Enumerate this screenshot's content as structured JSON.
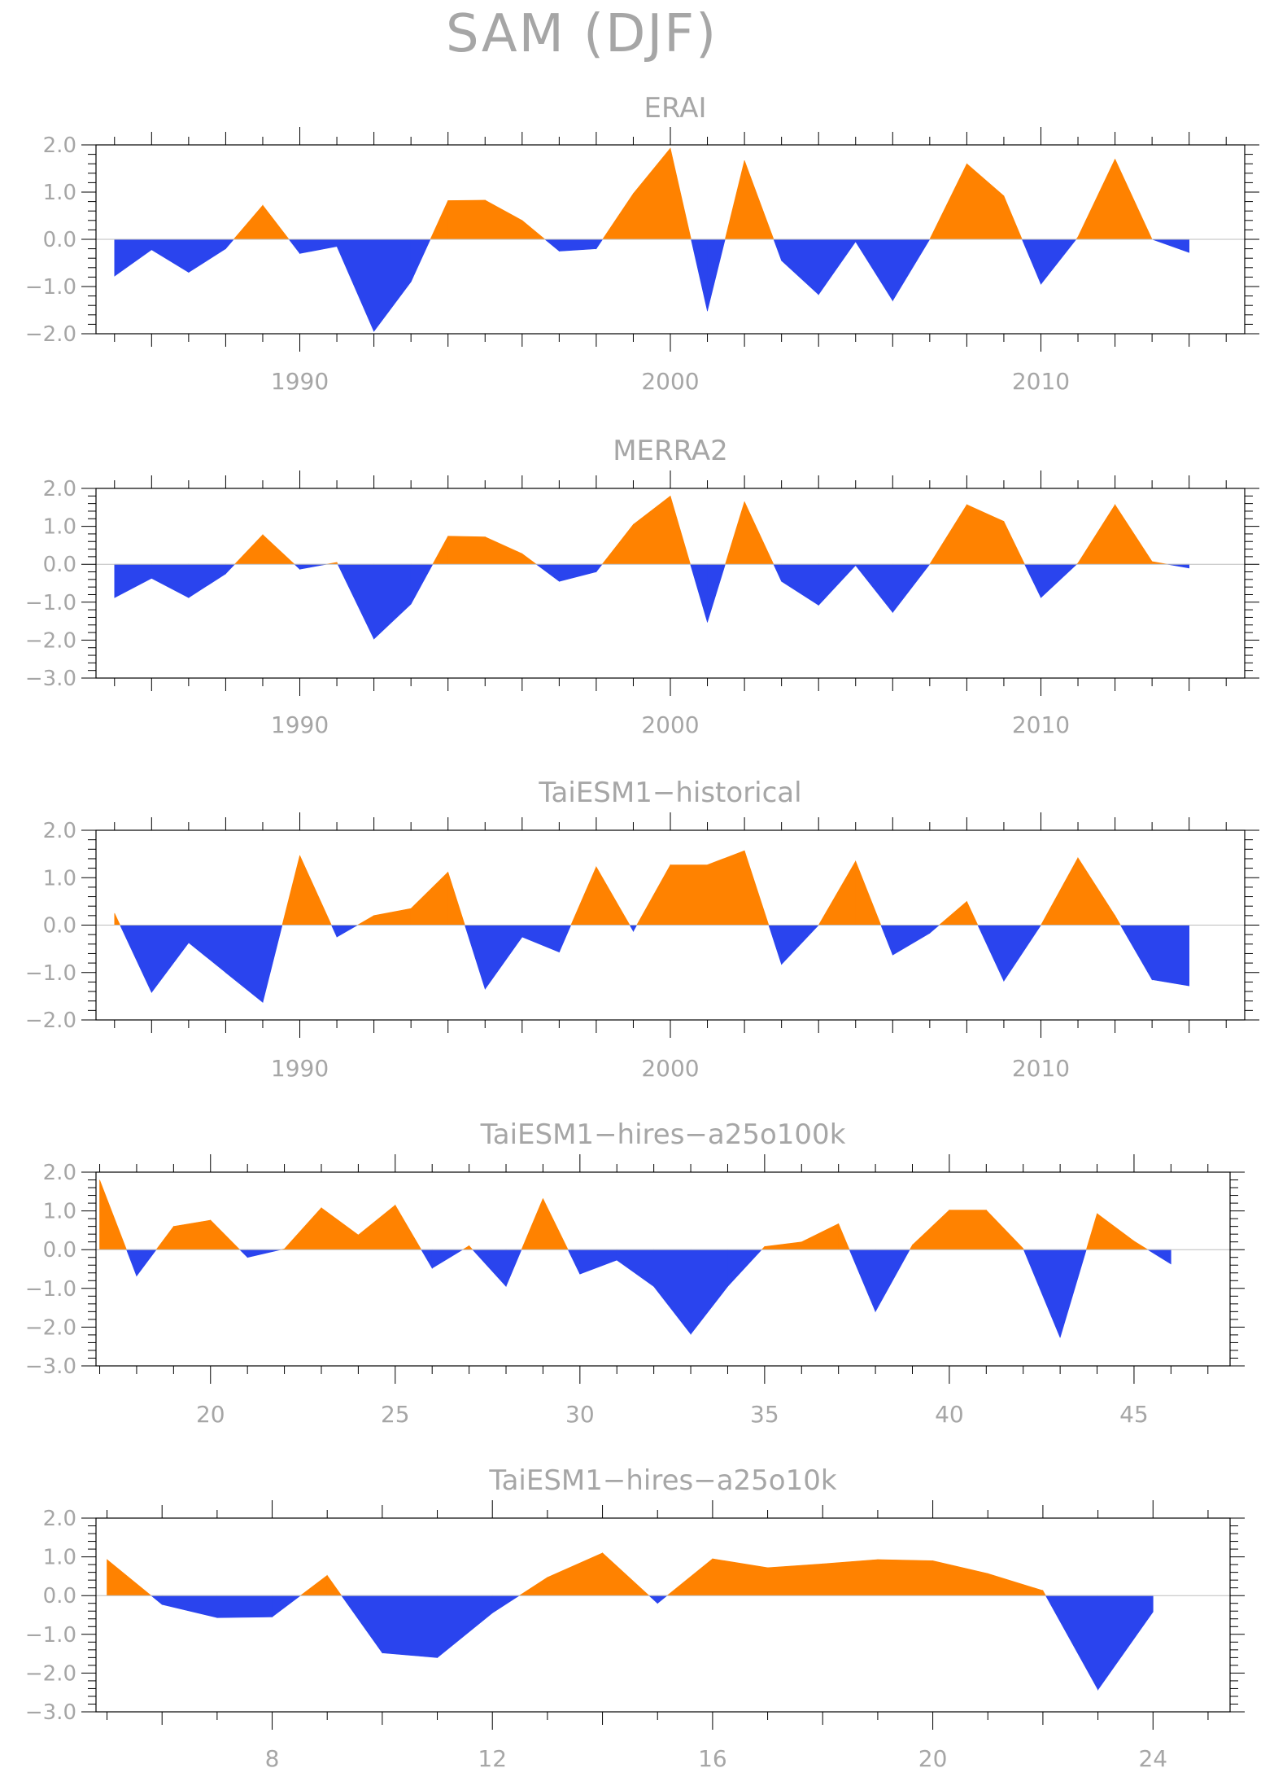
{
  "title": "SAM (DJF)",
  "colors": {
    "positive": "#ff8200",
    "negative": "#2a44ee",
    "axis": "#000000",
    "text": "#a6a6a6",
    "zero_line": "#bdbdbd"
  },
  "chart_data": [
    {
      "type": "area",
      "title": "ERAI",
      "xlabel": "",
      "ylabel": "",
      "xlim": [
        1984.5,
        2015.5
      ],
      "ylim": [
        -2.0,
        2.0
      ],
      "yticks": [
        2.0,
        1.0,
        0.0,
        -1.0,
        -2.0
      ],
      "ytick_labels": [
        "2.0",
        "1.0",
        "0.0",
        "-1.0",
        "-2.0"
      ],
      "xticks": [
        1990,
        2000,
        2010
      ],
      "xtick_labels": [
        "1990",
        "2000",
        "2010"
      ],
      "x": [
        1985,
        1986,
        1987,
        1988,
        1989,
        1990,
        1991,
        1992,
        1993,
        1994,
        1995,
        1996,
        1997,
        1998,
        1999,
        2000,
        2001,
        2002,
        2003,
        2004,
        2005,
        2006,
        2007,
        2008,
        2009,
        2010,
        2011,
        2012,
        2013,
        2014
      ],
      "values": [
        -0.78,
        -0.22,
        -0.7,
        -0.2,
        0.72,
        -0.3,
        -0.15,
        -1.95,
        -0.9,
        0.82,
        0.83,
        0.4,
        -0.25,
        -0.2,
        0.97,
        1.93,
        -1.52,
        1.67,
        -0.45,
        -1.17,
        -0.05,
        -1.3,
        0.0,
        1.6,
        0.92,
        -0.95,
        0.05,
        1.7,
        0.0,
        -0.28
      ]
    },
    {
      "type": "area",
      "title": "MERRA2",
      "xlabel": "",
      "ylabel": "",
      "xlim": [
        1984.5,
        2015.5
      ],
      "ylim": [
        -3.0,
        2.0
      ],
      "yticks": [
        2.0,
        1.0,
        0.0,
        -1.0,
        -2.0,
        -3.0
      ],
      "ytick_labels": [
        "2.0",
        "1.0",
        "0.0",
        "-1.0",
        "-2.0",
        "-3.0"
      ],
      "xticks": [
        1990,
        2000,
        2010
      ],
      "xtick_labels": [
        "1990",
        "2000",
        "2010"
      ],
      "x": [
        1985,
        1986,
        1987,
        1988,
        1989,
        1990,
        1991,
        1992,
        1993,
        1994,
        1995,
        1996,
        1997,
        1998,
        1999,
        2000,
        2001,
        2002,
        2003,
        2004,
        2005,
        2006,
        2007,
        2008,
        2009,
        2010,
        2011,
        2012,
        2013,
        2014
      ],
      "values": [
        -0.88,
        -0.37,
        -0.88,
        -0.25,
        0.78,
        -0.13,
        0.05,
        -1.97,
        -1.05,
        0.74,
        0.72,
        0.28,
        -0.45,
        -0.2,
        1.05,
        1.8,
        -1.53,
        1.65,
        -0.45,
        -1.08,
        -0.03,
        -1.27,
        0.0,
        1.57,
        1.13,
        -0.88,
        0.03,
        1.57,
        0.07,
        -0.1
      ]
    },
    {
      "type": "area",
      "title": "TaiESM1-historical",
      "xlabel": "",
      "ylabel": "",
      "xlim": [
        1984.5,
        2015.5
      ],
      "ylim": [
        -2.0,
        2.0
      ],
      "yticks": [
        2.0,
        1.0,
        0.0,
        -1.0,
        -2.0
      ],
      "ytick_labels": [
        "2.0",
        "1.0",
        "0.0",
        "-1.0",
        "-2.0"
      ],
      "xticks": [
        1990,
        2000,
        2010
      ],
      "xtick_labels": [
        "1990",
        "2000",
        "2010"
      ],
      "x": [
        1985,
        1986,
        1987,
        1988,
        1989,
        1990,
        1991,
        1992,
        1993,
        1994,
        1995,
        1996,
        1997,
        1998,
        1999,
        2000,
        2001,
        2002,
        2003,
        2004,
        2005,
        2006,
        2007,
        2008,
        2009,
        2010,
        2011,
        2012,
        2013,
        2014
      ],
      "values": [
        0.25,
        -1.42,
        -0.37,
        -1.0,
        -1.63,
        1.47,
        -0.25,
        0.2,
        0.35,
        1.12,
        -1.35,
        -0.25,
        -0.57,
        1.23,
        -0.13,
        1.27,
        1.27,
        1.57,
        -0.83,
        0.0,
        1.35,
        -0.63,
        -0.17,
        0.5,
        -1.18,
        0.0,
        1.42,
        0.2,
        -1.15,
        -1.28
      ]
    },
    {
      "type": "area",
      "title": "TaiESM1-hires-a25o100k",
      "xlabel": "",
      "ylabel": "",
      "xlim": [
        16.9,
        47.6
      ],
      "ylim": [
        -3.0,
        2.0
      ],
      "yticks": [
        2.0,
        1.0,
        0.0,
        -1.0,
        -2.0,
        -3.0
      ],
      "ytick_labels": [
        "2.0",
        "1.0",
        "0.0",
        "-1.0",
        "-2.0",
        "-3.0"
      ],
      "xticks": [
        20,
        25,
        30,
        35,
        40,
        45
      ],
      "xtick_labels": [
        "20",
        "25",
        "30",
        "35",
        "40",
        "45"
      ],
      "x": [
        17,
        18,
        19,
        20,
        21,
        22,
        23,
        24,
        25,
        26,
        27,
        28,
        29,
        30,
        31,
        32,
        33,
        34,
        35,
        36,
        37,
        38,
        39,
        40,
        41,
        42,
        43,
        44,
        45,
        46
      ],
      "values": [
        1.8,
        -0.68,
        0.6,
        0.76,
        -0.2,
        0.02,
        1.08,
        0.38,
        1.15,
        -0.48,
        0.1,
        -0.95,
        1.32,
        -0.63,
        -0.27,
        -0.95,
        -2.18,
        -0.95,
        0.08,
        0.2,
        0.67,
        -1.6,
        0.12,
        1.02,
        1.02,
        0.03,
        -2.27,
        0.93,
        0.22,
        -0.37
      ]
    },
    {
      "type": "area",
      "title": "TaiESM1-hires-a25o10k",
      "xlabel": "",
      "ylabel": "",
      "xlim": [
        4.8,
        25.4
      ],
      "ylim": [
        -3.0,
        2.0
      ],
      "yticks": [
        2.0,
        1.0,
        0.0,
        -1.0,
        -2.0,
        -3.0
      ],
      "ytick_labels": [
        "2.0",
        "1.0",
        "0.0",
        "-1.0",
        "-2.0",
        "-3.0"
      ],
      "xticks": [
        8,
        12,
        16,
        20,
        24
      ],
      "xtick_labels": [
        "8",
        "12",
        "16",
        "20",
        "24"
      ],
      "x": [
        5,
        6,
        7,
        8,
        9,
        10,
        11,
        12,
        13,
        14,
        15,
        16,
        17,
        18,
        19,
        20,
        21,
        22,
        23,
        24
      ],
      "values": [
        0.93,
        -0.23,
        -0.57,
        -0.55,
        0.52,
        -1.48,
        -1.6,
        -0.45,
        0.47,
        1.1,
        -0.2,
        0.95,
        0.72,
        0.82,
        0.93,
        0.9,
        0.57,
        0.13,
        -2.43,
        -0.42
      ]
    }
  ]
}
